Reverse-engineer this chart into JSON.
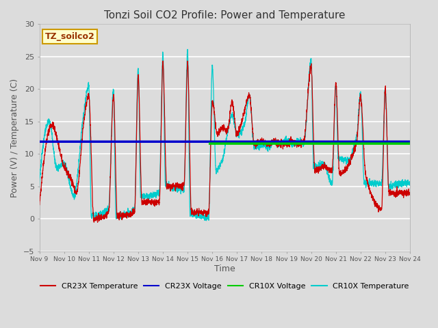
{
  "title": "Tonzi Soil CO2 Profile: Power and Temperature",
  "xlabel": "Time",
  "ylabel": "Power (V) / Temperature (C)",
  "ylim": [
    -5,
    30
  ],
  "xlim": [
    0,
    15
  ],
  "background_color": "#dcdcdc",
  "plot_bg_color": "#dcdcdc",
  "grid_color": "#ffffff",
  "x_tick_labels": [
    "Nov 9",
    "Nov 10",
    "Nov 11",
    "Nov 12",
    "Nov 13",
    "Nov 14",
    "Nov 15",
    "Nov 16",
    "Nov 17",
    "Nov 18",
    "Nov 19",
    "Nov 20",
    "Nov 21",
    "Nov 22",
    "Nov 23",
    "Nov 24"
  ],
  "cr23x_voltage_value": 11.9,
  "cr10x_voltage_value": 11.6,
  "annotation_text": "TZ_soilco2",
  "annotation_color": "#993300",
  "annotation_bg": "#ffffcc",
  "annotation_border": "#cc9900",
  "cr23x_temp_color": "#cc0000",
  "cr23x_voltage_color": "#0000cc",
  "cr10x_voltage_color": "#00cc00",
  "cr10x_temp_color": "#00cccc",
  "cr10x_voltage_start_day": 6.9
}
